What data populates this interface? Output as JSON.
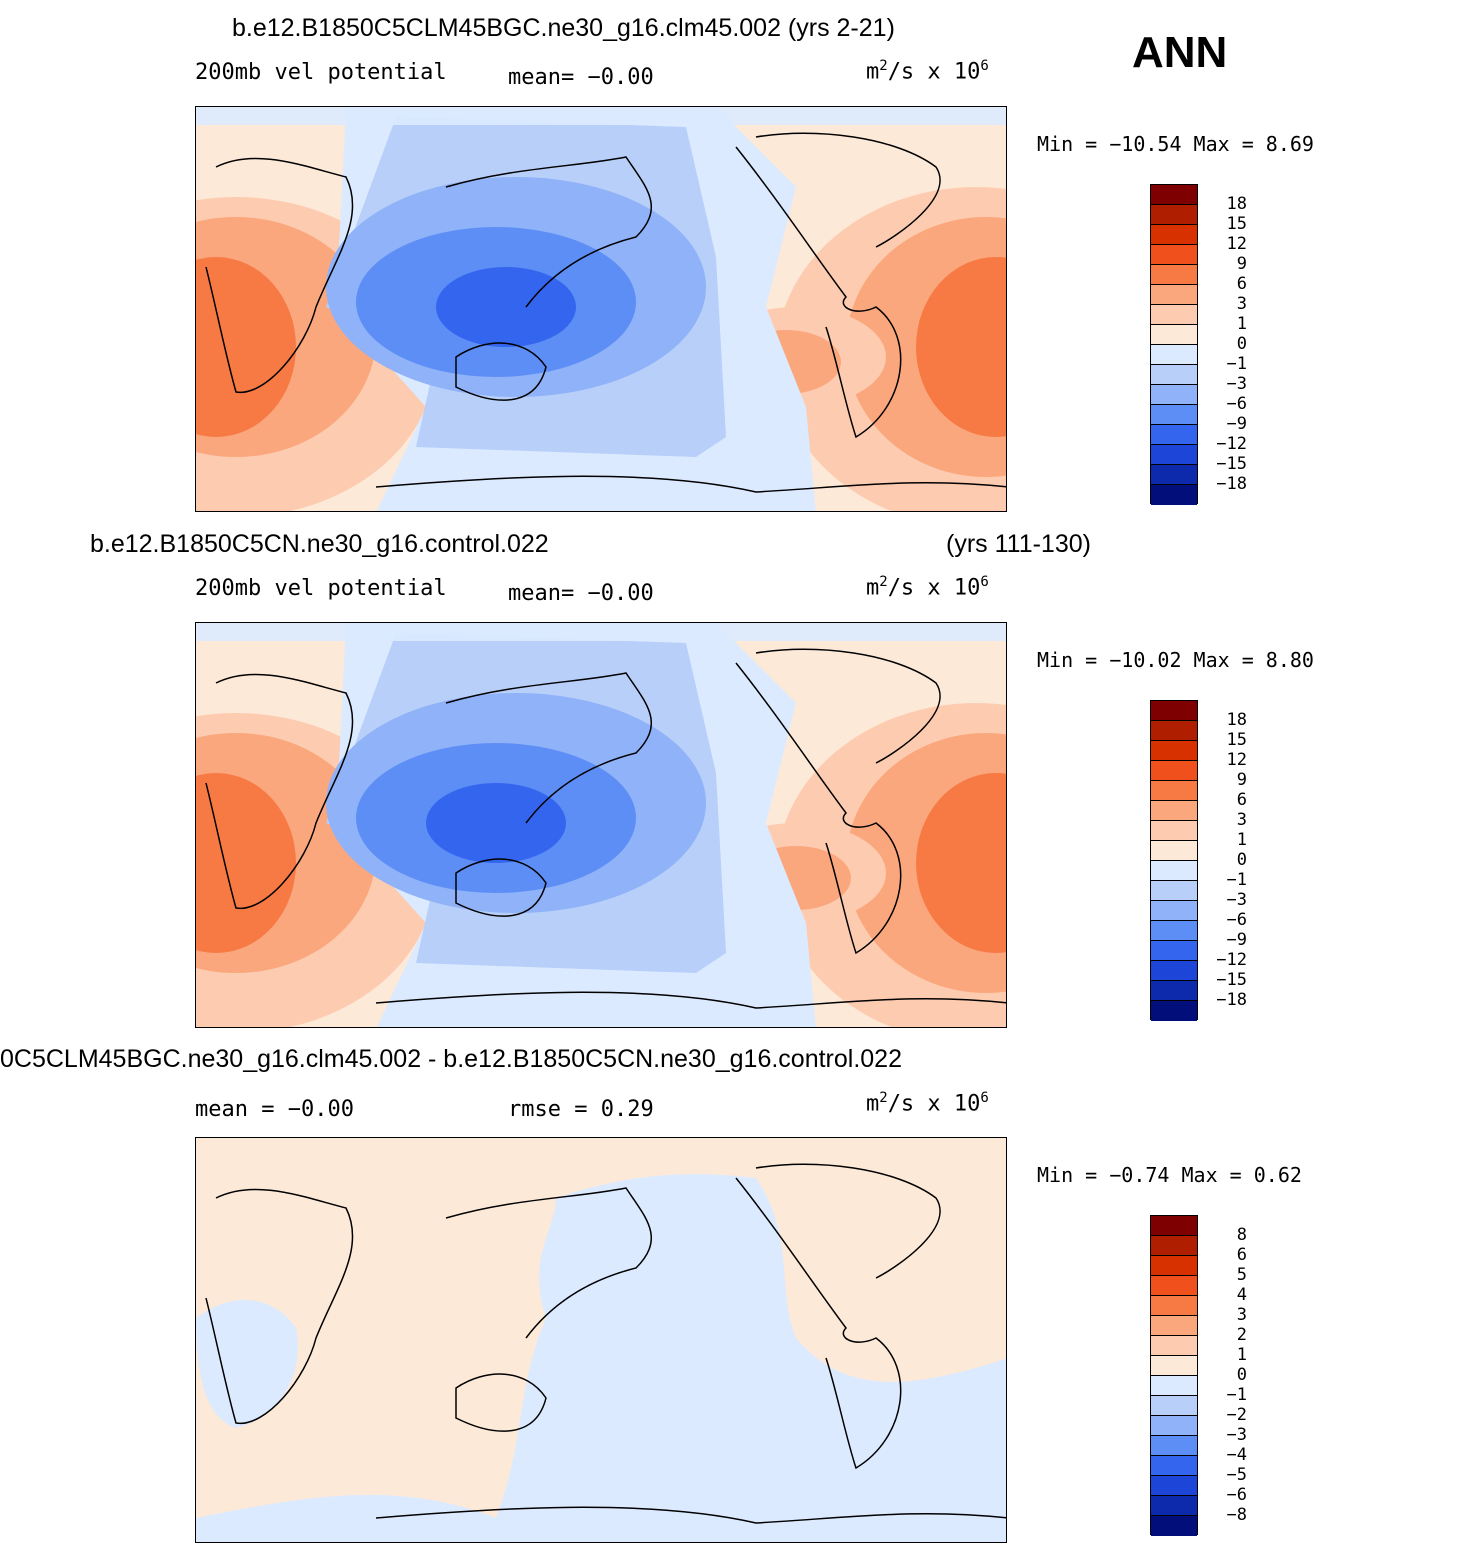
{
  "header": {
    "season": "ANN"
  },
  "panels": [
    {
      "title": "b.e12.B1850C5CLM45BGC.ne30_g16.clm45.002 (yrs 2-21)",
      "years": "",
      "field": "200mb vel potential",
      "stat1": "mean=  −0.00",
      "units": "m²/s x 10⁶",
      "units_base": "m",
      "units_mid": "/s x 10",
      "units_sup1": "2",
      "units_sup2": "6",
      "minmax": "Min = −10.54 Max =    8.69",
      "colorbar_labels": [
        "18",
        "15",
        "12",
        "9",
        "6",
        "3",
        "1",
        "0",
        "−1",
        "−3",
        "−6",
        "−9",
        "−12",
        "−15",
        "−18"
      ]
    },
    {
      "title": "b.e12.B1850C5CN.ne30_g16.control.022",
      "years": "(yrs 111-130)",
      "field": "200mb vel potential",
      "stat1": "mean=  −0.00",
      "units_base": "m",
      "units_mid": "/s x 10",
      "units_sup1": "2",
      "units_sup2": "6",
      "minmax": "Min = −10.02 Max =    8.80",
      "colorbar_labels": [
        "18",
        "15",
        "12",
        "9",
        "6",
        "3",
        "1",
        "0",
        "−1",
        "−3",
        "−6",
        "−9",
        "−12",
        "−15",
        "−18"
      ]
    },
    {
      "title": "0C5CLM45BGC.ne30_g16.clm45.002 - b.e12.B1850C5CN.ne30_g16.control.022",
      "field": "mean =  −0.00",
      "stat1": "rmse =   0.29",
      "units_base": "m",
      "units_mid": "/s x 10",
      "units_sup1": "2",
      "units_sup2": "6",
      "minmax": "Min =  −0.74 Max =   0.62",
      "colorbar_labels": [
        "8",
        "6",
        "5",
        "4",
        "3",
        "2",
        "1",
        "0",
        "−1",
        "−2",
        "−3",
        "−4",
        "−5",
        "−6",
        "−8"
      ]
    }
  ],
  "colors": {
    "colorbar": [
      "#7f0000",
      "#b01e00",
      "#d83100",
      "#f0501c",
      "#f77a45",
      "#fba77d",
      "#fdcbb0",
      "#fde9d8",
      "#dbeaff",
      "#b7cff9",
      "#8fb2f8",
      "#5d8ef6",
      "#3465ef",
      "#1d46d8",
      "#0c2aab",
      "#020f7a"
    ]
  }
}
